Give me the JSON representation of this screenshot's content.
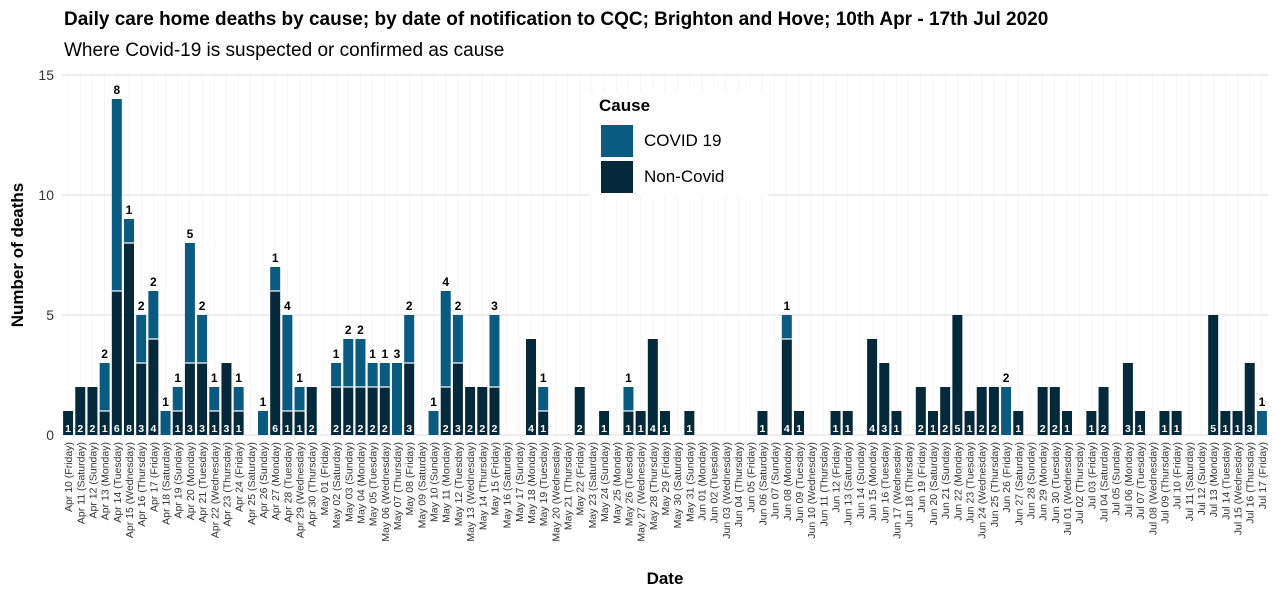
{
  "title": "Daily care home deaths by cause; by date of notification to CQC; Brighton and Hove; 10th Apr - 17th Jul 2020",
  "subtitle": "Where Covid-19 is suspected or confirmed as cause",
  "legend": {
    "title": "Cause",
    "items": [
      {
        "label": "COVID 19",
        "color": "#0b5a80"
      },
      {
        "label": "Non-Covid",
        "color": "#04293a"
      }
    ]
  },
  "chart_data": {
    "type": "bar",
    "stacked": true,
    "xlabel": "Date",
    "ylabel": "Number of deaths",
    "ylim": [
      0,
      15
    ],
    "yticks": [
      0,
      5,
      10,
      15
    ],
    "grid": true,
    "legend_position": "top-center",
    "categories": [
      "Apr 10 (Friday)",
      "Apr 11 (Saturday)",
      "Apr 12 (Sunday)",
      "Apr 13 (Monday)",
      "Apr 14 (Tuesday)",
      "Apr 15 (Wednesday)",
      "Apr 16 (Thursday)",
      "Apr 17 (Friday)",
      "Apr 18 (Saturday)",
      "Apr 19 (Sunday)",
      "Apr 20 (Monday)",
      "Apr 21 (Tuesday)",
      "Apr 22 (Wednesday)",
      "Apr 23 (Thursday)",
      "Apr 24 (Friday)",
      "Apr 25 (Saturday)",
      "Apr 26 (Sunday)",
      "Apr 27 (Monday)",
      "Apr 28 (Tuesday)",
      "Apr 29 (Wednesday)",
      "Apr 30 (Thursday)",
      "May 01 (Friday)",
      "May 02 (Saturday)",
      "May 03 (Sunday)",
      "May 04 (Monday)",
      "May 05 (Tuesday)",
      "May 06 (Wednesday)",
      "May 07 (Thursday)",
      "May 08 (Friday)",
      "May 09 (Saturday)",
      "May 10 (Sunday)",
      "May 11 (Monday)",
      "May 12 (Tuesday)",
      "May 13 (Wednesday)",
      "May 14 (Thursday)",
      "May 15 (Friday)",
      "May 16 (Saturday)",
      "May 17 (Sunday)",
      "May 18 (Monday)",
      "May 19 (Tuesday)",
      "May 20 (Wednesday)",
      "May 21 (Thursday)",
      "May 22 (Friday)",
      "May 23 (Saturday)",
      "May 24 (Sunday)",
      "May 25 (Monday)",
      "May 26 (Tuesday)",
      "May 27 (Wednesday)",
      "May 28 (Thursday)",
      "May 29 (Friday)",
      "May 30 (Saturday)",
      "May 31 (Sunday)",
      "Jun 01 (Monday)",
      "Jun 02 (Tuesday)",
      "Jun 03 (Wednesday)",
      "Jun 04 (Thursday)",
      "Jun 05 (Friday)",
      "Jun 06 (Saturday)",
      "Jun 07 (Sunday)",
      "Jun 08 (Monday)",
      "Jun 09 (Tuesday)",
      "Jun 10 (Wednesday)",
      "Jun 11 (Thursday)",
      "Jun 12 (Friday)",
      "Jun 13 (Saturday)",
      "Jun 14 (Sunday)",
      "Jun 15 (Monday)",
      "Jun 16 (Tuesday)",
      "Jun 17 (Wednesday)",
      "Jun 18 (Thursday)",
      "Jun 19 (Friday)",
      "Jun 20 (Saturday)",
      "Jun 21 (Sunday)",
      "Jun 22 (Monday)",
      "Jun 23 (Tuesday)",
      "Jun 24 (Wednesday)",
      "Jun 25 (Thursday)",
      "Jun 26 (Friday)",
      "Jun 27 (Saturday)",
      "Jun 28 (Sunday)",
      "Jun 29 (Monday)",
      "Jun 30 (Tuesday)",
      "Jul 01 (Wednesday)",
      "Jul 02 (Thursday)",
      "Jul 03 (Friday)",
      "Jul 04 (Saturday)",
      "Jul 05 (Sunday)",
      "Jul 06 (Monday)",
      "Jul 07 (Tuesday)",
      "Jul 08 (Wednesday)",
      "Jul 09 (Thursday)",
      "Jul 10 (Friday)",
      "Jul 11 (Saturday)",
      "Jul 12 (Sunday)",
      "Jul 13 (Monday)",
      "Jul 14 (Tuesday)",
      "Jul 15 (Wednesday)",
      "Jul 16 (Thursday)",
      "Jul 17 (Friday)"
    ],
    "series": [
      {
        "name": "Non-Covid",
        "color": "#04293a",
        "values": [
          1,
          2,
          2,
          1,
          6,
          8,
          3,
          4,
          0,
          1,
          3,
          3,
          1,
          3,
          1,
          0,
          0,
          6,
          1,
          1,
          2,
          0,
          2,
          2,
          2,
          2,
          2,
          0,
          3,
          0,
          0,
          2,
          3,
          2,
          2,
          2,
          0,
          0,
          4,
          1,
          0,
          0,
          2,
          0,
          1,
          0,
          1,
          1,
          4,
          1,
          0,
          1,
          0,
          0,
          0,
          0,
          0,
          1,
          0,
          4,
          1,
          0,
          0,
          1,
          1,
          0,
          4,
          3,
          1,
          0,
          2,
          1,
          2,
          5,
          1,
          2,
          2,
          0,
          1,
          0,
          2,
          2,
          1,
          0,
          1,
          2,
          0,
          3,
          1,
          0,
          1,
          1,
          0,
          0,
          5,
          1,
          1,
          3,
          0
        ]
      },
      {
        "name": "COVID 19",
        "color": "#0b5a80",
        "values": [
          0,
          0,
          0,
          2,
          8,
          1,
          2,
          2,
          1,
          1,
          5,
          2,
          1,
          0,
          1,
          0,
          1,
          1,
          4,
          1,
          0,
          0,
          1,
          2,
          2,
          1,
          1,
          3,
          2,
          0,
          1,
          4,
          2,
          0,
          0,
          3,
          0,
          0,
          0,
          1,
          0,
          0,
          0,
          0,
          0,
          0,
          1,
          0,
          0,
          0,
          0,
          0,
          0,
          0,
          0,
          0,
          0,
          0,
          0,
          1,
          0,
          0,
          0,
          0,
          0,
          0,
          0,
          0,
          0,
          0,
          0,
          0,
          0,
          0,
          0,
          0,
          0,
          2,
          0,
          0,
          0,
          0,
          0,
          0,
          0,
          0,
          0,
          0,
          0,
          0,
          0,
          0,
          0,
          0,
          0,
          0,
          0,
          0,
          1
        ]
      }
    ]
  }
}
